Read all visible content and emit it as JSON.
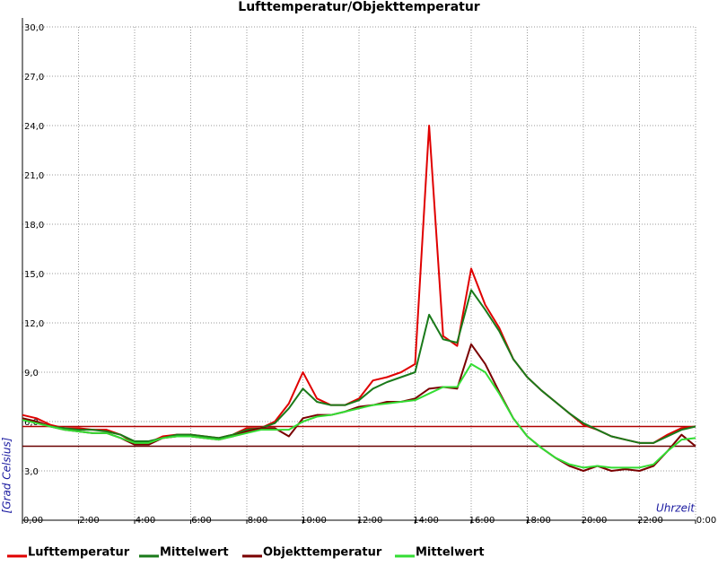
{
  "chart_data": {
    "type": "line",
    "title": "Lufttemperatur/Objekttemperatur",
    "y_label": "[Grad Celsius]",
    "x_label": "Uhrzeit",
    "x": [
      0,
      0.5,
      1,
      1.5,
      2,
      2.5,
      3,
      3.5,
      4,
      4.5,
      5,
      5.5,
      6,
      6.5,
      7,
      7.5,
      8,
      8.5,
      9,
      9.5,
      10,
      10.5,
      11,
      11.5,
      12,
      12.5,
      13,
      13.5,
      14,
      14.5,
      15,
      15.5,
      16,
      16.5,
      17,
      17.5,
      18,
      18.5,
      19,
      19.5,
      20,
      20.5,
      21,
      21.5,
      22,
      22.5,
      23,
      23.5,
      24
    ],
    "series": [
      {
        "name": "Lufttemperatur",
        "color": "#e00000",
        "values": [
          6.4,
          6.2,
          5.8,
          5.6,
          5.6,
          5.5,
          5.5,
          5.2,
          4.7,
          4.7,
          5.1,
          5.2,
          5.2,
          5.1,
          5.0,
          5.2,
          5.6,
          5.6,
          6.0,
          7.1,
          9.0,
          7.4,
          7.0,
          7.0,
          7.4,
          8.5,
          8.7,
          9.0,
          9.5,
          24.0,
          11.2,
          10.6,
          15.3,
          13.1,
          11.7,
          9.8,
          8.7,
          7.9,
          7.2,
          6.5,
          5.8,
          5.5,
          5.1,
          4.9,
          4.7,
          4.7,
          5.2,
          5.6,
          5.7
        ]
      },
      {
        "name": "Mittelwert",
        "color": "#1a7a1a",
        "values": [
          6.2,
          6.0,
          5.7,
          5.6,
          5.5,
          5.5,
          5.4,
          5.2,
          4.8,
          4.8,
          5.0,
          5.2,
          5.2,
          5.1,
          5.0,
          5.2,
          5.5,
          5.6,
          5.9,
          6.8,
          8.0,
          7.2,
          7.0,
          7.0,
          7.3,
          8.0,
          8.4,
          8.7,
          9.0,
          12.5,
          11.0,
          10.8,
          14.0,
          12.8,
          11.5,
          9.8,
          8.7,
          7.9,
          7.2,
          6.5,
          5.9,
          5.5,
          5.1,
          4.9,
          4.7,
          4.7,
          5.1,
          5.5,
          5.7
        ]
      },
      {
        "name": "Objekttemperatur",
        "color": "#7a0000",
        "values": [
          6.2,
          6.0,
          5.7,
          5.5,
          5.4,
          5.3,
          5.3,
          5.0,
          4.6,
          4.6,
          5.0,
          5.1,
          5.1,
          5.0,
          4.9,
          5.1,
          5.4,
          5.6,
          5.6,
          5.1,
          6.2,
          6.4,
          6.4,
          6.6,
          6.9,
          7.0,
          7.2,
          7.2,
          7.4,
          8.0,
          8.1,
          8.0,
          10.7,
          9.5,
          7.8,
          6.2,
          5.1,
          4.4,
          3.8,
          3.3,
          3.0,
          3.3,
          3.0,
          3.1,
          3.0,
          3.3,
          4.2,
          5.2,
          4.5
        ]
      },
      {
        "name": "Mittelwert",
        "color": "#33dd33",
        "values": [
          6.1,
          5.9,
          5.7,
          5.5,
          5.4,
          5.3,
          5.3,
          5.0,
          4.7,
          4.7,
          5.0,
          5.1,
          5.1,
          5.0,
          4.9,
          5.1,
          5.3,
          5.5,
          5.5,
          5.5,
          6.0,
          6.3,
          6.4,
          6.6,
          6.8,
          7.0,
          7.1,
          7.2,
          7.3,
          7.7,
          8.1,
          8.1,
          9.5,
          9.0,
          7.7,
          6.2,
          5.1,
          4.4,
          3.8,
          3.4,
          3.2,
          3.3,
          3.2,
          3.2,
          3.2,
          3.4,
          4.2,
          4.9,
          5.0
        ]
      }
    ],
    "hlines": [
      {
        "value": 5.7,
        "color": "#b00000"
      },
      {
        "value": 4.5,
        "color": "#6a0000"
      }
    ],
    "xlim": [
      0,
      24
    ],
    "xticks": [
      {
        "value": 0,
        "label": "0,00"
      },
      {
        "value": 2,
        "label": "2:00"
      },
      {
        "value": 4,
        "label": "4:00"
      },
      {
        "value": 6,
        "label": "6:00"
      },
      {
        "value": 8,
        "label": "8:00"
      },
      {
        "value": 10,
        "label": "10:00"
      },
      {
        "value": 12,
        "label": "12:00"
      },
      {
        "value": 14,
        "label": "14:00"
      },
      {
        "value": 16,
        "label": "16:00"
      },
      {
        "value": 18,
        "label": "18:00"
      },
      {
        "value": 20,
        "label": "20:00"
      },
      {
        "value": 22,
        "label": "22:00"
      },
      {
        "value": 24,
        "label": "0:00"
      }
    ],
    "ylim": [
      0,
      30
    ],
    "yticks": [
      {
        "value": 3,
        "label": "3,0"
      },
      {
        "value": 6,
        "label": "6,0"
      },
      {
        "value": 9,
        "label": "9,0"
      },
      {
        "value": 12,
        "label": "12,0"
      },
      {
        "value": 15,
        "label": "15,0"
      },
      {
        "value": 18,
        "label": "18,0"
      },
      {
        "value": 21,
        "label": "21,0"
      },
      {
        "value": 24,
        "label": "24,0"
      },
      {
        "value": 27,
        "label": "27,0"
      },
      {
        "value": 30,
        "label": "30,0"
      }
    ],
    "grid": true
  }
}
